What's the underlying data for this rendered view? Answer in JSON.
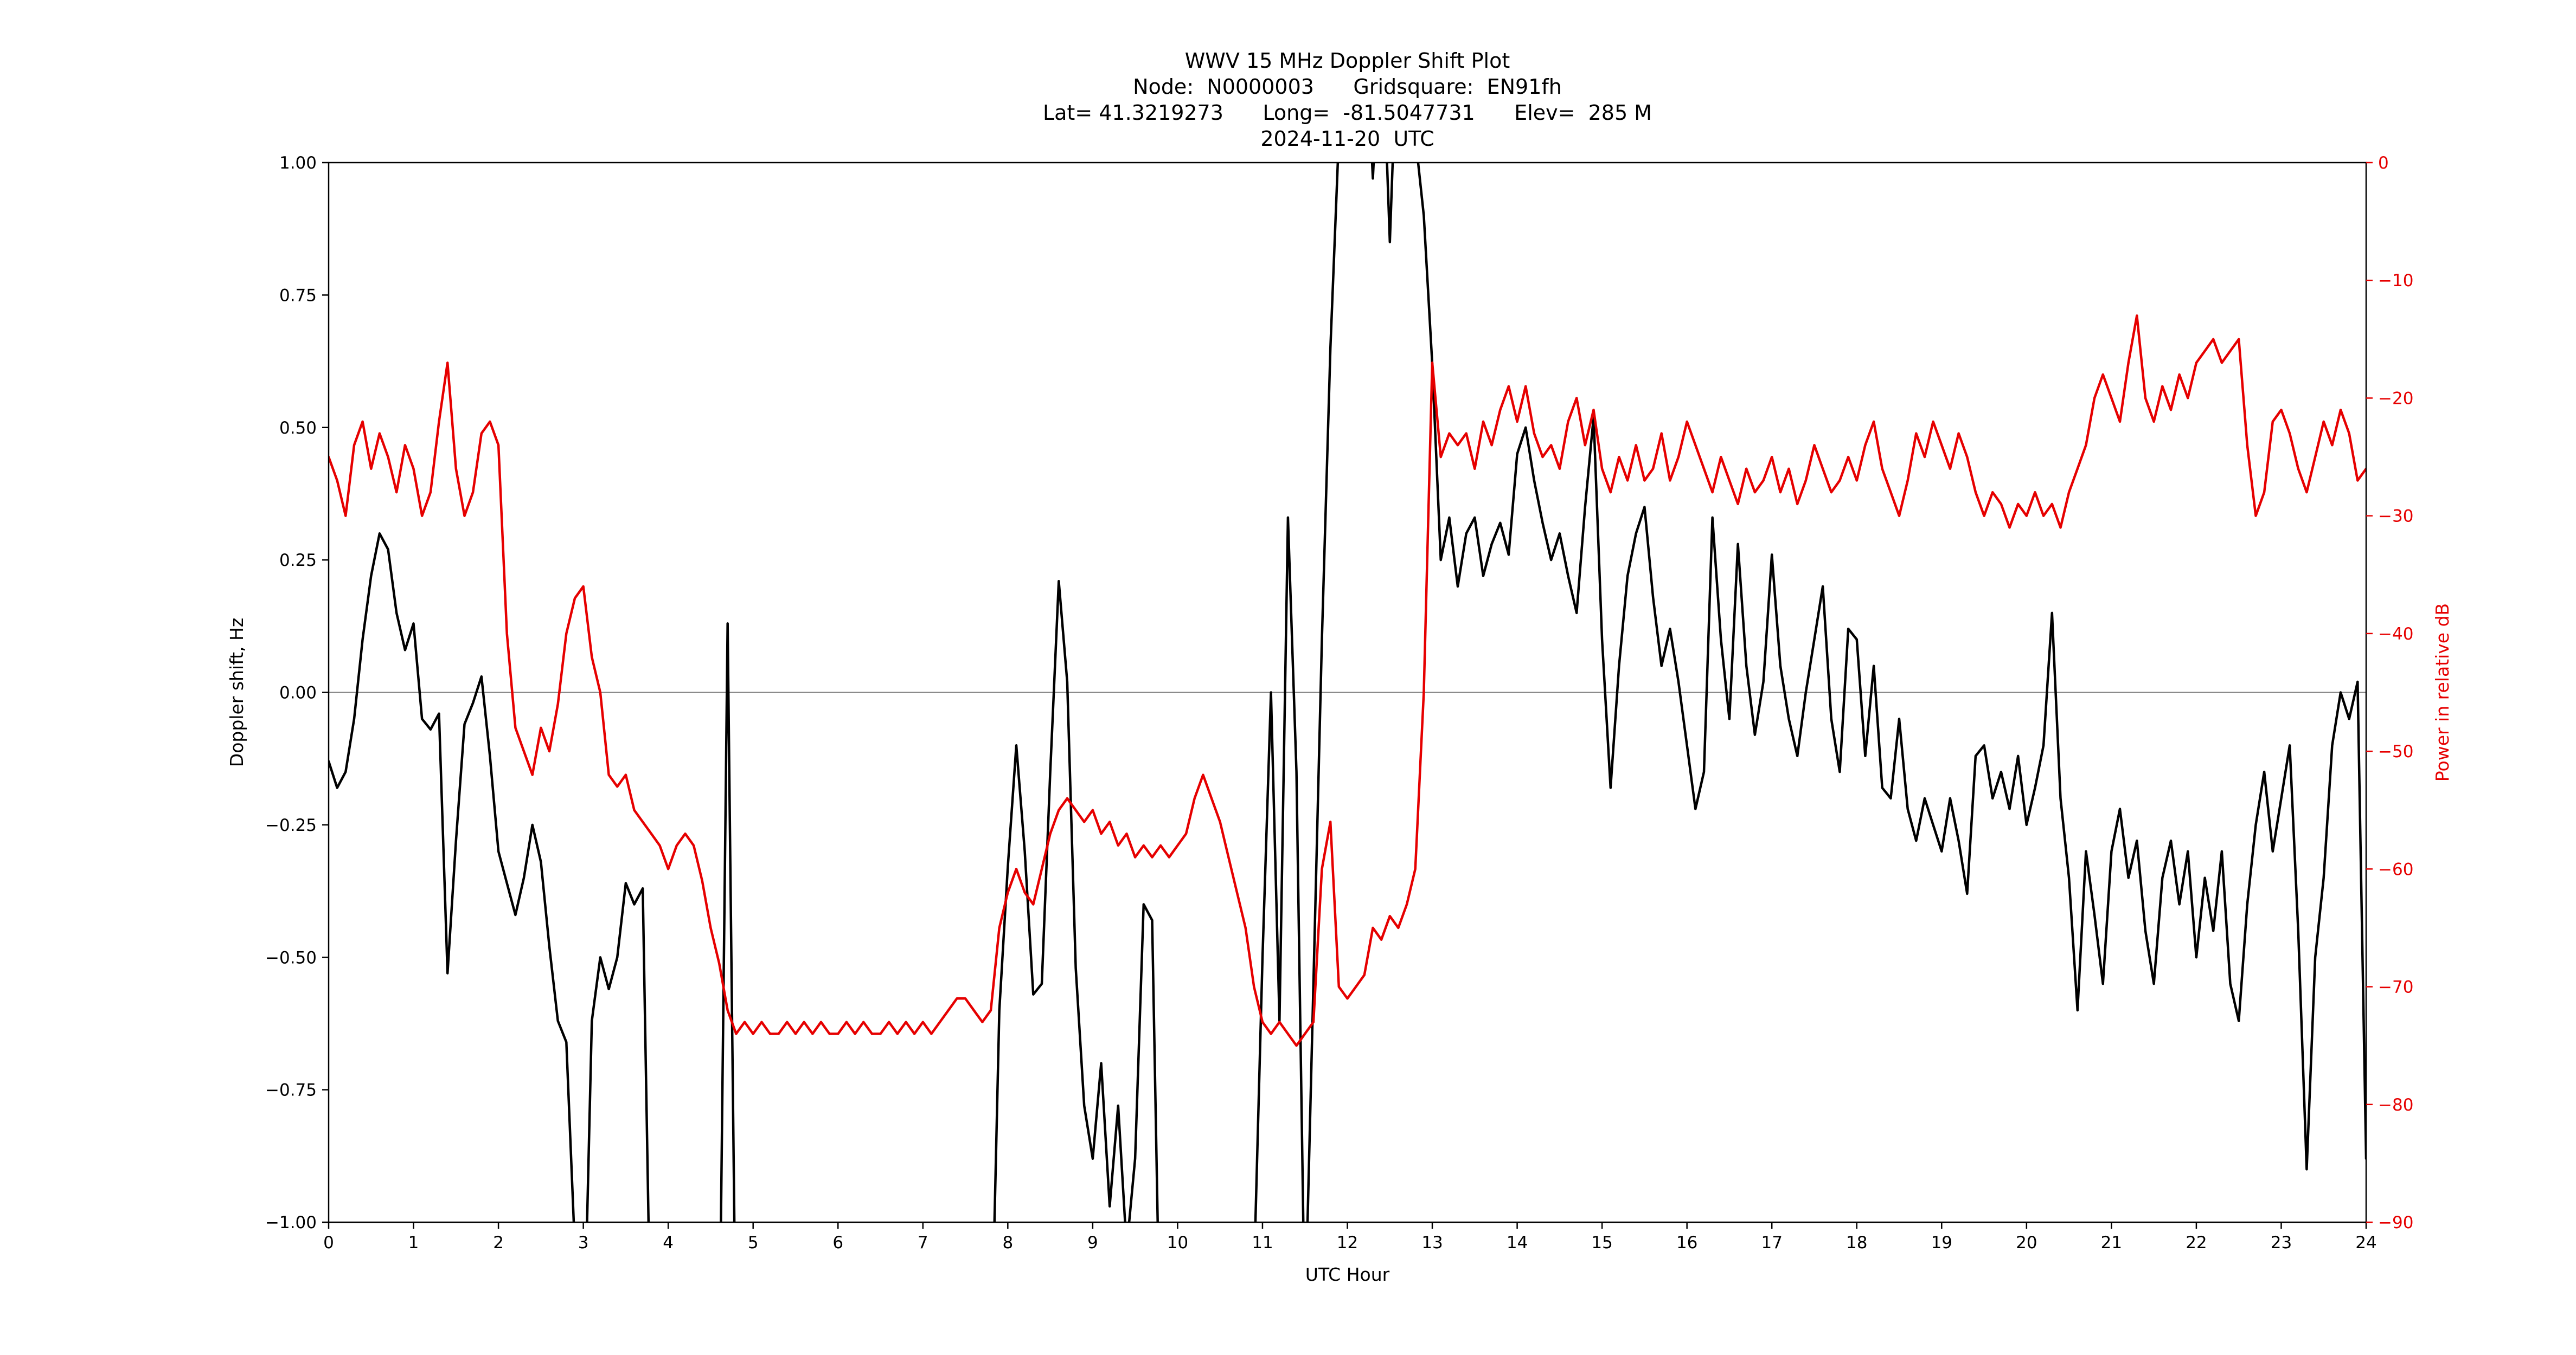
{
  "title": {
    "line1": "WWV 15 MHz Doppler Shift Plot",
    "line2": "Node:  N0000003      Gridsquare:  EN91fh",
    "line3": "Lat= 41.3219273      Long=  -81.5047731      Elev=  285 M",
    "line4": "2024-11-20  UTC"
  },
  "colors": {
    "doppler_black": "#000000",
    "power_red": "#e60000",
    "zero_line_gray": "#808080",
    "spine_black": "#000000"
  },
  "chart_data": {
    "type": "line",
    "title": "WWV 15 MHz Doppler Shift Plot",
    "x_axis": {
      "label": "UTC Hour",
      "range": [
        0,
        24
      ],
      "ticks": [
        0,
        1,
        2,
        3,
        4,
        5,
        6,
        7,
        8,
        9,
        10,
        11,
        12,
        13,
        14,
        15,
        16,
        17,
        18,
        19,
        20,
        21,
        22,
        23,
        24
      ],
      "tick_labels": [
        "0",
        "1",
        "2",
        "3",
        "4",
        "5",
        "6",
        "7",
        "8",
        "9",
        "10",
        "11",
        "12",
        "13",
        "14",
        "15",
        "16",
        "17",
        "18",
        "19",
        "20",
        "21",
        "22",
        "23",
        "24"
      ]
    },
    "y_left_axis": {
      "label": "Doppler shift, Hz",
      "range": [
        -1.0,
        1.0
      ],
      "ticks": [
        1.0,
        0.75,
        0.5,
        0.25,
        0.0,
        -0.25,
        -0.5,
        -0.75,
        -1.0
      ],
      "tick_labels": [
        "1.00",
        "0.75",
        "0.50",
        "0.25",
        "0.00",
        "−0.25",
        "−0.50",
        "−0.75",
        "−1.00"
      ]
    },
    "y_right_axis": {
      "label": "Power in relative dB",
      "range": [
        -90,
        0
      ],
      "ticks": [
        0,
        -10,
        -20,
        -30,
        -40,
        -50,
        -60,
        -70,
        -80,
        -90
      ],
      "tick_labels": [
        "0",
        "−10",
        "−20",
        "−30",
        "−40",
        "−50",
        "−60",
        "−70",
        "−80",
        "−90"
      ]
    },
    "zero_reference_line_y_left": 0.0,
    "x_start": 0,
    "x_step": 0.1,
    "offscale_note": "values beyond axis range represent excursions clipped at the plot boundary",
    "series": [
      {
        "name": "Doppler shift (Hz)",
        "axis": "left",
        "color": "#000000",
        "values": [
          -0.13,
          -0.18,
          -0.15,
          -0.05,
          0.1,
          0.22,
          0.3,
          0.27,
          0.15,
          0.08,
          0.13,
          -0.05,
          -0.07,
          -0.04,
          -0.53,
          -0.28,
          -0.06,
          -0.02,
          0.03,
          -0.12,
          -0.3,
          -0.36,
          -0.42,
          -0.35,
          -0.25,
          -0.32,
          -0.48,
          -0.62,
          -0.66,
          -1.05,
          -1.3,
          -0.62,
          -0.5,
          -0.56,
          -0.5,
          -0.36,
          -0.4,
          -0.37,
          -1.3,
          -1.3,
          -1.3,
          -1.3,
          -1.3,
          -1.3,
          -1.3,
          -1.3,
          -1.3,
          0.13,
          -1.3,
          -1.3,
          -1.3,
          -1.3,
          -1.3,
          -1.3,
          -1.3,
          -1.3,
          -1.3,
          -1.3,
          -1.3,
          -1.3,
          -1.3,
          -1.3,
          -1.3,
          -1.3,
          -1.3,
          -1.3,
          -1.3,
          -1.3,
          -1.3,
          -1.3,
          -1.3,
          -1.3,
          -1.3,
          -1.3,
          -1.3,
          -1.3,
          -1.3,
          -1.3,
          -1.3,
          -0.6,
          -0.33,
          -0.1,
          -0.3,
          -0.57,
          -0.55,
          -0.15,
          0.21,
          0.02,
          -0.52,
          -0.78,
          -0.88,
          -0.7,
          -0.97,
          -0.78,
          -1.05,
          -0.88,
          -0.4,
          -0.43,
          -1.3,
          -1.3,
          -1.3,
          -1.3,
          -1.3,
          -1.3,
          -1.3,
          -1.3,
          -1.3,
          -1.3,
          -1.3,
          -1.1,
          -0.5,
          0.0,
          -0.62,
          0.33,
          -0.15,
          -1.2,
          -0.55,
          0.1,
          0.65,
          1.05,
          1.3,
          1.3,
          1.3,
          0.97,
          1.3,
          0.85,
          1.3,
          1.3,
          1.05,
          0.9,
          0.62,
          0.25,
          0.33,
          0.2,
          0.3,
          0.33,
          0.22,
          0.28,
          0.32,
          0.26,
          0.45,
          0.5,
          0.4,
          0.32,
          0.25,
          0.3,
          0.22,
          0.15,
          0.35,
          0.52,
          0.1,
          -0.18,
          0.05,
          0.22,
          0.3,
          0.35,
          0.18,
          0.05,
          0.12,
          0.02,
          -0.1,
          -0.22,
          -0.15,
          0.33,
          0.1,
          -0.05,
          0.28,
          0.05,
          -0.08,
          0.02,
          0.26,
          0.05,
          -0.05,
          -0.12,
          0.0,
          0.1,
          0.2,
          -0.05,
          -0.15,
          0.12,
          0.1,
          -0.12,
          0.05,
          -0.18,
          -0.2,
          -0.05,
          -0.22,
          -0.28,
          -0.2,
          -0.25,
          -0.3,
          -0.2,
          -0.28,
          -0.38,
          -0.12,
          -0.1,
          -0.2,
          -0.15,
          -0.22,
          -0.12,
          -0.25,
          -0.18,
          -0.1,
          0.15,
          -0.2,
          -0.35,
          -0.6,
          -0.3,
          -0.42,
          -0.55,
          -0.3,
          -0.22,
          -0.35,
          -0.28,
          -0.45,
          -0.55,
          -0.35,
          -0.28,
          -0.4,
          -0.3,
          -0.5,
          -0.35,
          -0.45,
          -0.3,
          -0.55,
          -0.62,
          -0.4,
          -0.25,
          -0.15,
          -0.3,
          -0.2,
          -0.1,
          -0.45,
          -0.9,
          -0.5,
          -0.35,
          -0.1,
          0.0,
          -0.05,
          0.02,
          -0.88
        ]
      },
      {
        "name": "Power in relative dB",
        "axis": "right",
        "color": "#e60000",
        "values": [
          -25,
          -27,
          -30,
          -24,
          -22,
          -26,
          -23,
          -25,
          -28,
          -24,
          -26,
          -30,
          -28,
          -22,
          -17,
          -26,
          -30,
          -28,
          -23,
          -22,
          -24,
          -40,
          -48,
          -50,
          -52,
          -48,
          -50,
          -46,
          -40,
          -37,
          -36,
          -42,
          -45,
          -52,
          -53,
          -52,
          -55,
          -56,
          -57,
          -58,
          -60,
          -58,
          -57,
          -58,
          -61,
          -65,
          -68,
          -72,
          -74,
          -73,
          -74,
          -73,
          -74,
          -74,
          -73,
          -74,
          -73,
          -74,
          -73,
          -74,
          -74,
          -73,
          -74,
          -73,
          -74,
          -74,
          -73,
          -74,
          -73,
          -74,
          -73,
          -74,
          -73,
          -72,
          -71,
          -71,
          -72,
          -73,
          -72,
          -65,
          -62,
          -60,
          -62,
          -63,
          -60,
          -57,
          -55,
          -54,
          -55,
          -56,
          -55,
          -57,
          -56,
          -58,
          -57,
          -59,
          -58,
          -59,
          -58,
          -59,
          -58,
          -57,
          -54,
          -52,
          -54,
          -56,
          -59,
          -62,
          -65,
          -70,
          -73,
          -74,
          -73,
          -74,
          -75,
          -74,
          -73,
          -60,
          -56,
          -70,
          -71,
          -70,
          -69,
          -65,
          -66,
          -64,
          -65,
          -63,
          -60,
          -45,
          -17,
          -25,
          -23,
          -24,
          -23,
          -26,
          -22,
          -24,
          -21,
          -19,
          -22,
          -19,
          -23,
          -25,
          -24,
          -26,
          -22,
          -20,
          -24,
          -21,
          -26,
          -28,
          -25,
          -27,
          -24,
          -27,
          -26,
          -23,
          -27,
          -25,
          -22,
          -24,
          -26,
          -28,
          -25,
          -27,
          -29,
          -26,
          -28,
          -27,
          -25,
          -28,
          -26,
          -29,
          -27,
          -24,
          -26,
          -28,
          -27,
          -25,
          -27,
          -24,
          -22,
          -26,
          -28,
          -30,
          -27,
          -23,
          -25,
          -22,
          -24,
          -26,
          -23,
          -25,
          -28,
          -30,
          -28,
          -29,
          -31,
          -29,
          -30,
          -28,
          -30,
          -29,
          -31,
          -28,
          -26,
          -24,
          -20,
          -18,
          -20,
          -22,
          -17,
          -13,
          -20,
          -22,
          -19,
          -21,
          -18,
          -20,
          -17,
          -16,
          -15,
          -17,
          -16,
          -15,
          -24,
          -30,
          -28,
          -22,
          -21,
          -23,
          -26,
          -28,
          -25,
          -22,
          -24,
          -21,
          -23,
          -27,
          -26
        ]
      }
    ]
  }
}
